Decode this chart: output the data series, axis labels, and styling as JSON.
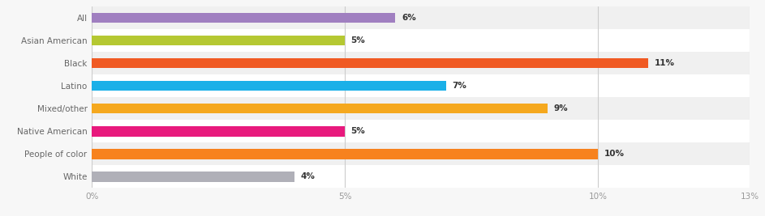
{
  "categories": [
    "All",
    "Asian American",
    "Black",
    "Latino",
    "Mixed/other",
    "Native American",
    "People of color",
    "White"
  ],
  "values": [
    6,
    5,
    11,
    7,
    9,
    5,
    10,
    4
  ],
  "colors": [
    "#a07fc0",
    "#b5c832",
    "#f05a23",
    "#1ab0e8",
    "#f5a81e",
    "#e8197d",
    "#f7821e",
    "#b0b0b8"
  ],
  "xlim": [
    0,
    13
  ],
  "xticks": [
    0,
    5,
    10,
    13
  ],
  "xtick_labels": [
    "0%",
    "5%",
    "10%",
    "13%"
  ],
  "row_colors": [
    "#f0f0f0",
    "#ffffff",
    "#f0f0f0",
    "#ffffff",
    "#f0f0f0",
    "#ffffff",
    "#f0f0f0",
    "#ffffff"
  ],
  "label_fontsize": 7.5,
  "value_fontsize": 7.5,
  "tick_fontsize": 7.5,
  "bar_height": 0.45
}
